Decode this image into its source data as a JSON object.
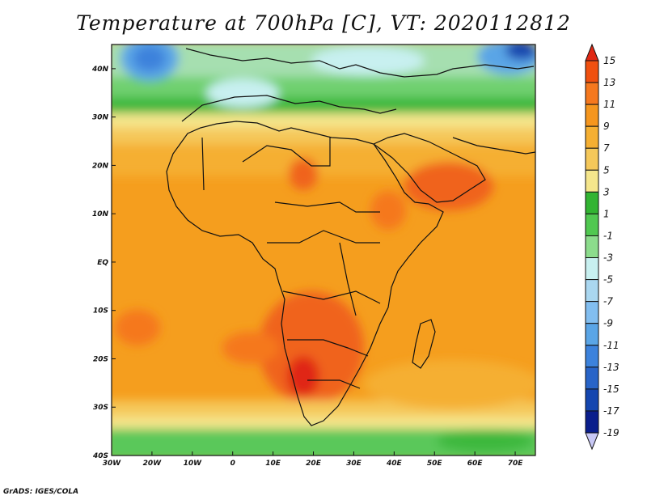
{
  "title": "Temperature at 700hPa [C], VT: 2020112812",
  "footer": "GrADS: IGES/COLA",
  "map": {
    "lon_range": [
      -30,
      75
    ],
    "lat_range": [
      -40,
      45
    ],
    "lon_ticks": [
      "30W",
      "20W",
      "10W",
      "0",
      "10E",
      "20E",
      "30E",
      "40E",
      "50E",
      "60E",
      "70E"
    ],
    "lat_ticks": [
      "40N",
      "30N",
      "20N",
      "10N",
      "EQ",
      "10S",
      "20S",
      "30S",
      "40S"
    ]
  },
  "colorbar": {
    "labels": [
      "15",
      "13",
      "11",
      "9",
      "7",
      "5",
      "3",
      "1",
      "-1",
      "-3",
      "-5",
      "-7",
      "-9",
      "-11",
      "-13",
      "-15",
      "-17",
      "-19"
    ],
    "colors": [
      "#e02814",
      "#f0500f",
      "#f5781e",
      "#f5961e",
      "#f5af32",
      "#f5c85a",
      "#f5e68c",
      "#32b432",
      "#50c850",
      "#8cdc8c",
      "#c8f0f0",
      "#aad7f0",
      "#82bef0",
      "#5aa5e6",
      "#3c82dc",
      "#2864c8",
      "#1446af",
      "#0a1e8c",
      "#c8c8f5"
    ]
  }
}
